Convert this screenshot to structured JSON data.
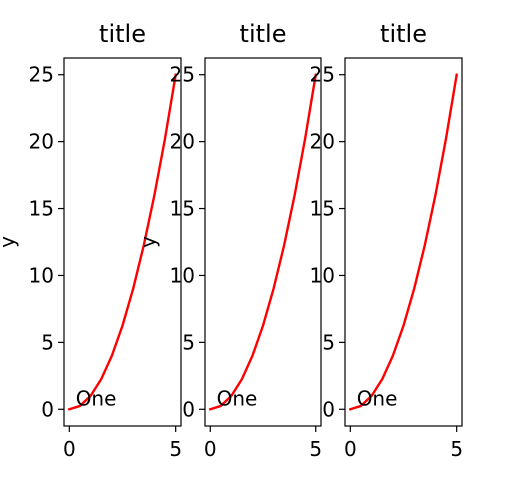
{
  "chart_data": [
    {
      "type": "line",
      "title": "title",
      "ylabel": "y",
      "annotation": "One",
      "xlim": [
        -0.25,
        5.25
      ],
      "ylim": [
        -1.25,
        26.25
      ],
      "xticks": [
        0,
        5
      ],
      "yticks": [
        0,
        5,
        10,
        15,
        20,
        25
      ],
      "series": [
        {
          "color": "#ff0000",
          "x": [
            0,
            0.5,
            1,
            1.5,
            2,
            2.5,
            3,
            3.5,
            4,
            4.5,
            5
          ],
          "y": [
            0,
            0.25,
            1,
            2.25,
            4,
            6.25,
            9,
            12.25,
            16,
            20.25,
            25
          ]
        }
      ]
    },
    {
      "type": "line",
      "title": "title",
      "ylabel": "y",
      "annotation": "One",
      "xlim": [
        -0.25,
        5.25
      ],
      "ylim": [
        -1.25,
        26.25
      ],
      "xticks": [
        0,
        5
      ],
      "yticks": [
        0,
        5,
        10,
        15,
        20,
        25
      ],
      "series": [
        {
          "color": "#ff0000",
          "x": [
            0,
            0.5,
            1,
            1.5,
            2,
            2.5,
            3,
            3.5,
            4,
            4.5,
            5
          ],
          "y": [
            0,
            0.25,
            1,
            2.25,
            4,
            6.25,
            9,
            12.25,
            16,
            20.25,
            25
          ]
        }
      ]
    },
    {
      "type": "line",
      "title": "title",
      "ylabel": "",
      "annotation": "One",
      "xlim": [
        -0.25,
        5.25
      ],
      "ylim": [
        -1.25,
        26.25
      ],
      "xticks": [
        0,
        5
      ],
      "yticks": [
        0,
        5,
        10,
        15,
        20,
        25
      ],
      "series": [
        {
          "color": "#ff0000",
          "x": [
            0,
            0.5,
            1,
            1.5,
            2,
            2.5,
            3,
            3.5,
            4,
            4.5,
            5
          ],
          "y": [
            0,
            0.25,
            1,
            2.25,
            4,
            6.25,
            9,
            12.25,
            16,
            20.25,
            25
          ]
        }
      ]
    }
  ]
}
